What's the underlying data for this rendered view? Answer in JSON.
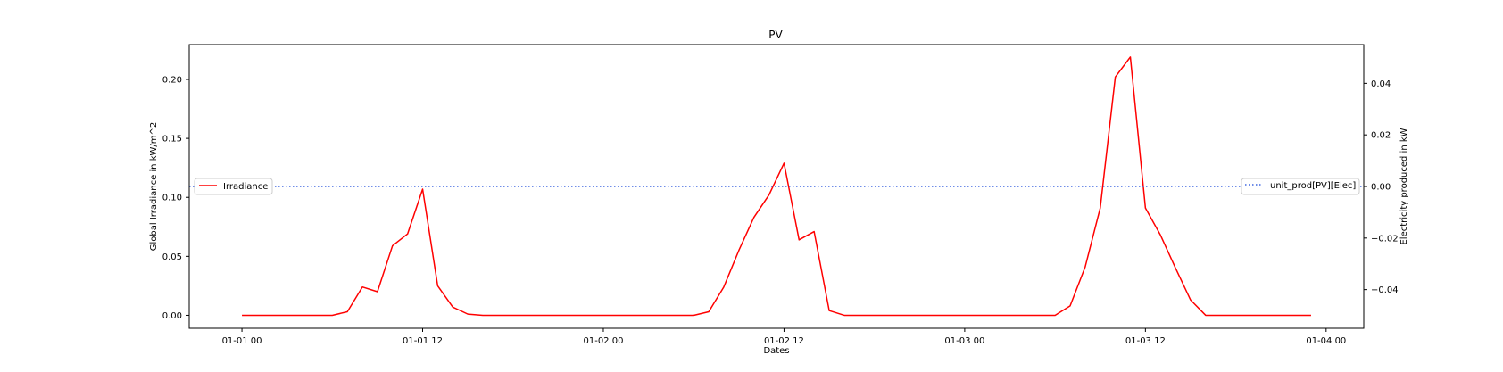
{
  "chart_data": {
    "type": "line",
    "title": "PV",
    "xlabel": "Dates",
    "ylabel_left": "Global Irradiance in kW/m^2",
    "ylabel_right": "Electricity produced in kW",
    "x_start": "2000-01-01 00:00",
    "x_step_hours": 1,
    "xlim_hours": [
      -3.5,
      74.5
    ],
    "x_ticks": [
      {
        "hour": 0,
        "label": "01-01 00"
      },
      {
        "hour": 12,
        "label": "01-01 12"
      },
      {
        "hour": 24,
        "label": "01-02 00"
      },
      {
        "hour": 36,
        "label": "01-02 12"
      },
      {
        "hour": 48,
        "label": "01-03 00"
      },
      {
        "hour": 60,
        "label": "01-03 12"
      },
      {
        "hour": 72,
        "label": "01-04 00"
      }
    ],
    "ylim_left": [
      -0.011,
      0.2295
    ],
    "y_ticks_left": [
      {
        "value": 0.0,
        "label": "0.00"
      },
      {
        "value": 0.05,
        "label": "0.05"
      },
      {
        "value": 0.1,
        "label": "0.10"
      },
      {
        "value": 0.15,
        "label": "0.15"
      },
      {
        "value": 0.2,
        "label": "0.20"
      }
    ],
    "ylim_right": [
      -0.055,
      0.055
    ],
    "y_ticks_right": [
      {
        "value": -0.04,
        "label": "−0.04"
      },
      {
        "value": -0.02,
        "label": "−0.02"
      },
      {
        "value": 0.0,
        "label": "0.00"
      },
      {
        "value": 0.02,
        "label": "0.02"
      },
      {
        "value": 0.04,
        "label": "0.04"
      }
    ],
    "series": [
      {
        "name": "Irradiance",
        "axis": "left",
        "color": "#ff0000",
        "style": "solid",
        "values": [
          0,
          0,
          0,
          0,
          0,
          0,
          0,
          0.003,
          0.024,
          0.02,
          0.059,
          0.069,
          0.107,
          0.025,
          0.007,
          0.001,
          0,
          0,
          0,
          0,
          0,
          0,
          0,
          0,
          0,
          0,
          0,
          0,
          0,
          0,
          0,
          0.003,
          0.024,
          0.055,
          0.083,
          0.102,
          0.129,
          0.064,
          0.071,
          0.004,
          0,
          0,
          0,
          0,
          0,
          0,
          0,
          0,
          0,
          0,
          0,
          0,
          0,
          0,
          0,
          0.008,
          0.041,
          0.091,
          0.202,
          0.219,
          0.091,
          0.068,
          0.04,
          0.013,
          0,
          0,
          0,
          0,
          0,
          0,
          0,
          0
        ]
      },
      {
        "name": "unit_prod[PV][Elec]",
        "axis": "right",
        "color": "#4169e1",
        "style": "dotted",
        "x_range_hours": [
          -3.5,
          74.5
        ],
        "value": 0.0
      }
    ],
    "legend_left": {
      "placement": "center-left",
      "label": "Irradiance"
    },
    "legend_right": {
      "placement": "center-right",
      "label": "unit_prod[PV][Elec]"
    },
    "grid": false
  }
}
